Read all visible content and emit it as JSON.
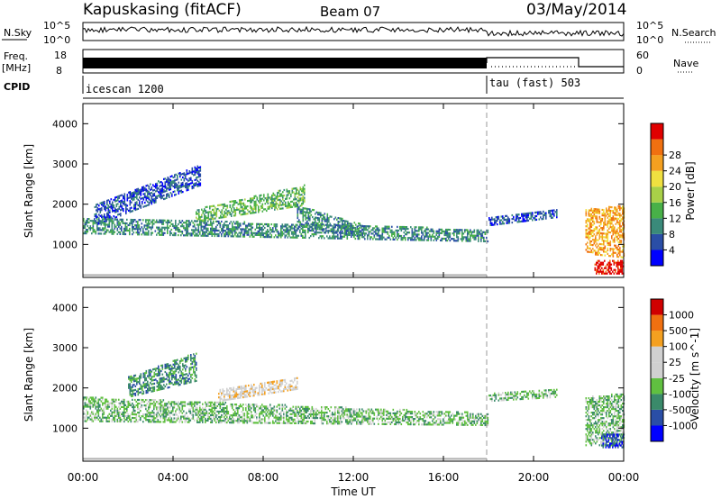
{
  "header": {
    "station": "Kapuskasing (fitACF)",
    "beam": "Beam 07",
    "date": "03/May/2014"
  },
  "left_labels": {
    "nsky": "N.Sky",
    "freq": "Freq.",
    "freq_unit": "[MHz]",
    "cpid": "CPID"
  },
  "right_labels": {
    "nsearch": "N.Search",
    "nave": "Nave"
  },
  "status_axes": {
    "nsky_ticks": [
      "10^5",
      "10^0"
    ],
    "nsearch_ticks": [
      "10^5",
      "10^0"
    ],
    "freq_ticks": [
      "18",
      "8"
    ],
    "nave_ticks": [
      "60",
      "0"
    ]
  },
  "cpid_programs": [
    {
      "label": "icescan 1200",
      "start": "00:00",
      "end": "18:00"
    },
    {
      "label": "tau (fast) 503",
      "start": "18:00",
      "end": "24:00"
    }
  ],
  "colors": {
    "power": [
      "#0000ff",
      "#2a4ea6",
      "#3a8a7a",
      "#48b048",
      "#a8d048",
      "#f0e040",
      "#f4a020",
      "#f07010",
      "#e00000"
    ],
    "velocity": [
      "#d00000",
      "#f07010",
      "#f4a020",
      "#d0d0d0",
      "#d0d0d0",
      "#60c040",
      "#3a8a6a",
      "#2a4ea6",
      "#0000ff"
    ],
    "ground_scatter": "#b0b0b0"
  },
  "chart_data": [
    {
      "type": "heatmap",
      "title": "Power",
      "xlabel": "Time UT",
      "ylabel": "Slant Range [km]",
      "x_ticks": [
        "00:00",
        "04:00",
        "08:00",
        "12:00",
        "16:00",
        "20:00",
        "00:00"
      ],
      "y_ticks": [
        1000,
        2000,
        3000,
        4000
      ],
      "xlim": [
        0,
        24
      ],
      "ylim": [
        180,
        4500
      ],
      "colorbar": {
        "label": "Power [dB]",
        "ticks": [
          "4",
          "8",
          "12",
          "16",
          "20",
          "24",
          "28"
        ]
      },
      "bands": [
        {
          "t0": 0.5,
          "t1": 5.2,
          "r0_start": 1500,
          "r0_end": 2500,
          "r1_start": 2000,
          "r1_end": 3000,
          "color_index": 1
        },
        {
          "t0": 0.0,
          "t1": 18.0,
          "r0_start": 1300,
          "r0_end": 1100,
          "r1_start": 1700,
          "r1_end": 1400,
          "color_index": 2
        },
        {
          "t0": 5.0,
          "t1": 9.8,
          "r0_start": 1600,
          "r0_end": 2000,
          "r1_start": 1900,
          "r1_end": 2500,
          "color_index": 3
        },
        {
          "t0": 9.5,
          "t1": 12.5,
          "r0_start": 1500,
          "r0_end": 1200,
          "r1_start": 2000,
          "r1_end": 1500,
          "color_index": 2
        },
        {
          "t0": 18.0,
          "t1": 21.0,
          "r0_start": 1500,
          "r0_end": 1700,
          "r1_start": 1700,
          "r1_end": 1900,
          "color_index": 1
        },
        {
          "t0": 22.3,
          "t1": 24.0,
          "r0_start": 800,
          "r0_end": 700,
          "r1_start": 1900,
          "r1_end": 2000,
          "color_index": 6
        },
        {
          "t0": 22.7,
          "t1": 24.0,
          "r0_start": 300,
          "r0_end": 300,
          "r1_start": 650,
          "r1_end": 650,
          "color_index": 8
        }
      ]
    },
    {
      "type": "heatmap",
      "title": "Velocity",
      "xlabel": "Time UT",
      "ylabel": "Slant Range [km]",
      "x_ticks": [
        "00:00",
        "04:00",
        "08:00",
        "12:00",
        "16:00",
        "20:00",
        "00:00"
      ],
      "y_ticks": [
        1000,
        2000,
        3000,
        4000
      ],
      "xlim": [
        0,
        24
      ],
      "ylim": [
        180,
        4500
      ],
      "colorbar": {
        "label": "Velocity [m s^-1]",
        "ticks": [
          "1000",
          "500",
          "100",
          "25",
          "-25",
          "-100",
          "-500",
          "-1000"
        ]
      },
      "bands": [
        {
          "t0": 2.0,
          "t1": 5.0,
          "r0_start": 1800,
          "r0_end": 2200,
          "r1_start": 2300,
          "r1_end": 2900,
          "color_index": 2
        },
        {
          "t0": 0.0,
          "t1": 18.0,
          "r0_start": 1200,
          "r0_end": 1100,
          "r1_start": 1800,
          "r1_end": 1400,
          "color_index": 3
        },
        {
          "t0": 6.0,
          "t1": 9.5,
          "r0_start": 1700,
          "r0_end": 2000,
          "r1_start": 2000,
          "r1_end": 2300,
          "color_index": 5
        },
        {
          "t0": 18.0,
          "t1": 21.0,
          "r0_start": 1700,
          "r0_end": 1800,
          "r1_start": 1900,
          "r1_end": 2000,
          "color_index": 3
        },
        {
          "t0": 22.3,
          "t1": 24.0,
          "r0_start": 600,
          "r0_end": 600,
          "r1_start": 1800,
          "r1_end": 1900,
          "color_index": 3
        },
        {
          "t0": 23.0,
          "t1": 24.0,
          "r0_start": 550,
          "r0_end": 550,
          "r1_start": 900,
          "r1_end": 900,
          "color_index": 1
        }
      ]
    }
  ]
}
